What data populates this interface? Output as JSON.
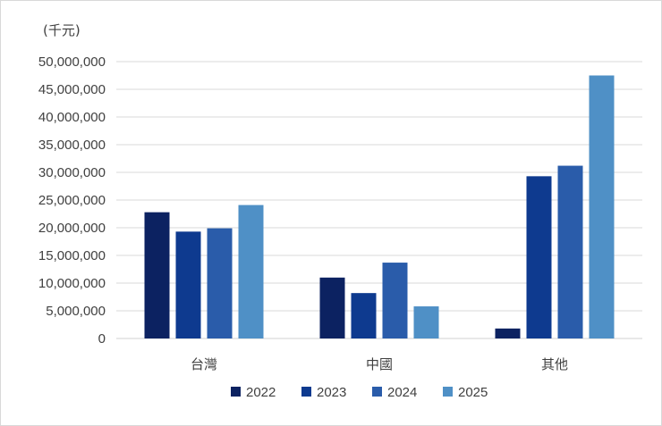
{
  "chart_data": {
    "type": "bar",
    "unit_label": "(千元)",
    "categories": [
      "台灣",
      "中國",
      "其他"
    ],
    "series": [
      {
        "name": "2022",
        "color": "#0c2261",
        "values": [
          22800000,
          11000000,
          1800000
        ]
      },
      {
        "name": "2023",
        "color": "#0e3a8f",
        "values": [
          19300000,
          8200000,
          29300000
        ]
      },
      {
        "name": "2024",
        "color": "#2a5caa",
        "values": [
          19900000,
          13700000,
          31200000
        ]
      },
      {
        "name": "2025",
        "color": "#4f90c6",
        "values": [
          24100000,
          5800000,
          47500000
        ]
      }
    ],
    "ylim": [
      0,
      50000000
    ],
    "yticks": [
      "0",
      "5,000,000",
      "10,000,000",
      "15,000,000",
      "20,000,000",
      "25,000,000",
      "30,000,000",
      "35,000,000",
      "40,000,000",
      "45,000,000",
      "50,000,000"
    ],
    "grid": true,
    "legend_position": "bottom"
  }
}
